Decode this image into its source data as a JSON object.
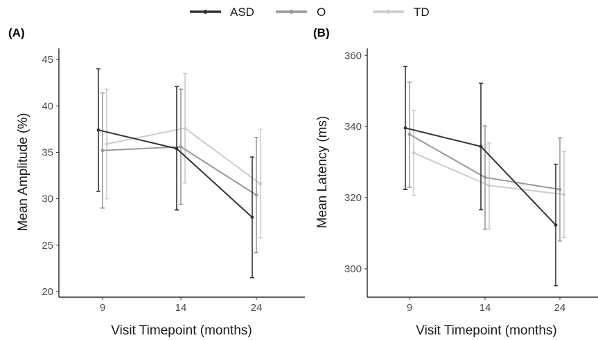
{
  "legend": {
    "items": [
      {
        "label": "ASD",
        "color": "#333333"
      },
      {
        "label": "O",
        "color": "#999999"
      },
      {
        "label": "TD",
        "color": "#cccccc"
      }
    ]
  },
  "chart_data": [
    {
      "panel_label": "(A)",
      "type": "line",
      "xlabel": "Visit Timepoint (months)",
      "ylabel": "Mean Amplitude (%)",
      "categories": [
        "9",
        "14",
        "24"
      ],
      "yticks": [
        "20",
        "25",
        "30",
        "35",
        "40",
        "45"
      ],
      "ylim": [
        19.4,
        46.2
      ],
      "error_bars": true,
      "series": [
        {
          "name": "ASD",
          "color": "#333333",
          "values": [
            37.4,
            35.4,
            28.0
          ],
          "lower": [
            30.8,
            28.8,
            21.5
          ],
          "upper": [
            44.0,
            42.1,
            34.5
          ]
        },
        {
          "name": "O",
          "color": "#999999",
          "values": [
            35.2,
            35.6,
            30.4
          ],
          "lower": [
            29.0,
            29.4,
            24.2
          ],
          "upper": [
            41.4,
            41.8,
            36.6
          ]
        },
        {
          "name": "TD",
          "color": "#cccccc",
          "values": [
            35.9,
            37.6,
            31.6
          ],
          "lower": [
            30.0,
            31.7,
            25.8
          ],
          "upper": [
            41.8,
            43.5,
            37.5
          ]
        }
      ]
    },
    {
      "panel_label": "(B)",
      "type": "line",
      "xlabel": "Visit Timepoint (months)",
      "ylabel": "Mean Latency (ms)",
      "categories": [
        "9",
        "14",
        "24"
      ],
      "yticks": [
        "300",
        "320",
        "340",
        "360"
      ],
      "ylim": [
        292,
        362
      ],
      "error_bars": true,
      "series": [
        {
          "name": "ASD",
          "color": "#333333",
          "values": [
            339.6,
            334.4,
            312.3
          ],
          "lower": [
            322.3,
            316.6,
            295.2
          ],
          "upper": [
            356.9,
            352.2,
            329.4
          ]
        },
        {
          "name": "O",
          "color": "#999999",
          "values": [
            337.8,
            325.7,
            322.3
          ],
          "lower": [
            322.9,
            311.1,
            307.8
          ],
          "upper": [
            352.5,
            340.2,
            336.8
          ]
        },
        {
          "name": "TD",
          "color": "#cccccc",
          "values": [
            332.6,
            323.4,
            320.9
          ],
          "lower": [
            320.6,
            311.2,
            308.8
          ],
          "upper": [
            344.5,
            335.4,
            333.0
          ]
        }
      ]
    }
  ]
}
